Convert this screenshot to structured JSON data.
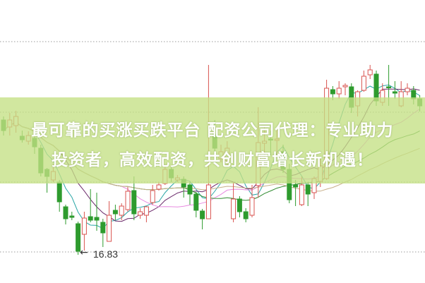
{
  "banner": {
    "line1": "最可靠的买涨买跌平台 配资公司代理：专业助力",
    "line2": "投资者，高效配资，共创财富增长新机遇！"
  },
  "chart_data": {
    "type": "candlestick",
    "low_marker": {
      "label": "16.83",
      "value": 16.83
    },
    "grid": "dotted horizontal",
    "colors": {
      "up": "#d9534f",
      "down": "#2e9b2e",
      "banner": "#c4e084"
    },
    "ohlc": [
      [
        20.65,
        20.35,
        20.75,
        20.21
      ],
      [
        20.45,
        20.65,
        20.85,
        20.21
      ],
      [
        20.49,
        20.75,
        20.91,
        20.29
      ],
      [
        20.19,
        20.09,
        20.35,
        20.01
      ],
      [
        20.05,
        20.21,
        20.33,
        19.95
      ],
      [
        20.13,
        19.89,
        20.25,
        19.69
      ],
      [
        19.85,
        19.15,
        19.95,
        19.05
      ],
      [
        19.25,
        19.05,
        19.29,
        18.59
      ],
      [
        18.95,
        19.19,
        19.39,
        18.89
      ],
      [
        18.89,
        18.33,
        18.95,
        18.05
      ],
      [
        18.19,
        17.85,
        18.25,
        17.69
      ],
      [
        17.93,
        17.89,
        18.05,
        17.81
      ],
      [
        17.71,
        16.93,
        17.77,
        16.83
      ],
      [
        17.41,
        17.87,
        18.05,
        16.95
      ],
      [
        17.91,
        17.81,
        18.69,
        17.75
      ],
      [
        17.89,
        17.81,
        18.59,
        17.51
      ],
      [
        17.75,
        17.45,
        17.85,
        17.05
      ],
      [
        17.21,
        17.95,
        18.35,
        17.21
      ],
      [
        18.09,
        17.99,
        18.25,
        17.81
      ],
      [
        17.95,
        18.21,
        18.29,
        17.81
      ],
      [
        18.11,
        18.63,
        18.75,
        18.05
      ],
      [
        18.65,
        17.99,
        19.05,
        17.81
      ],
      [
        17.95,
        18.05,
        18.15,
        17.85
      ],
      [
        17.95,
        18.19,
        18.21,
        17.75
      ],
      [
        18.31,
        18.65,
        18.81,
        18.25
      ],
      [
        18.69,
        18.81,
        18.89,
        18.65
      ],
      [
        18.85,
        19.25,
        19.35,
        18.81
      ],
      [
        19.25,
        19.01,
        19.33,
        18.89
      ],
      [
        18.95,
        19.01,
        19.09,
        18.89
      ],
      [
        18.97,
        18.75,
        19.05,
        18.45
      ],
      [
        18.81,
        18.55,
        18.89,
        18.25
      ],
      [
        18.55,
        18.09,
        18.61,
        17.89
      ],
      [
        18.07,
        17.85,
        18.13,
        17.55
      ],
      [
        17.85,
        18.81,
        22.21,
        17.85
      ],
      [
        20.25,
        19.85,
        20.65,
        19.45
      ],
      [
        19.55,
        19.75,
        19.95,
        19.45
      ],
      [
        19.49,
        19.85,
        20.05,
        19.35
      ],
      [
        17.85,
        18.41,
        18.89,
        17.75
      ],
      [
        18.41,
        18.05,
        18.49,
        17.89
      ],
      [
        18.05,
        17.85,
        18.15,
        17.75
      ],
      [
        17.95,
        18.45,
        18.81,
        17.89
      ],
      [
        18.79,
        20.01,
        21.01,
        18.45
      ],
      [
        19.99,
        20.05,
        20.49,
        19.45
      ],
      [
        20.11,
        20.09,
        20.35,
        19.65
      ],
      [
        20.07,
        20.11,
        20.41,
        19.65
      ],
      [
        19.75,
        19.25,
        19.95,
        19.15
      ],
      [
        19.25,
        18.39,
        19.41,
        18.29
      ],
      [
        18.81,
        18.75,
        18.95,
        18.21
      ],
      [
        18.25,
        18.81,
        19.05,
        18.21
      ],
      [
        18.81,
        18.55,
        18.89,
        18.21
      ],
      [
        18.59,
        18.99,
        19.05,
        18.41
      ],
      [
        18.91,
        19.35,
        19.55,
        18.75
      ],
      [
        18.99,
        21.55,
        21.79,
        18.95
      ],
      [
        21.51,
        21.39,
        21.61,
        21.21
      ],
      [
        21.39,
        21.55,
        21.75,
        21.25
      ],
      [
        21.59,
        21.63,
        21.69,
        21.35
      ],
      [
        21.59,
        21.01,
        21.69,
        20.85
      ],
      [
        21.05,
        21.45,
        21.49,
        20.75
      ],
      [
        21.49,
        21.89,
        22.05,
        21.45
      ],
      [
        21.93,
        22.07,
        22.21,
        21.81
      ],
      [
        21.95,
        21.19,
        22.05,
        21.05
      ],
      [
        21.15,
        21.49,
        21.69,
        21.05
      ],
      [
        21.59,
        21.57,
        22.21,
        21.05
      ],
      [
        21.45,
        21.41,
        21.75,
        21.25
      ],
      [
        21.05,
        21.45,
        21.75,
        21.01
      ],
      [
        21.45,
        21.55,
        21.69,
        21.35
      ],
      [
        21.49,
        21.25,
        21.61,
        21.09
      ],
      [
        21.25,
        21.05,
        21.35,
        20.89
      ]
    ]
  }
}
